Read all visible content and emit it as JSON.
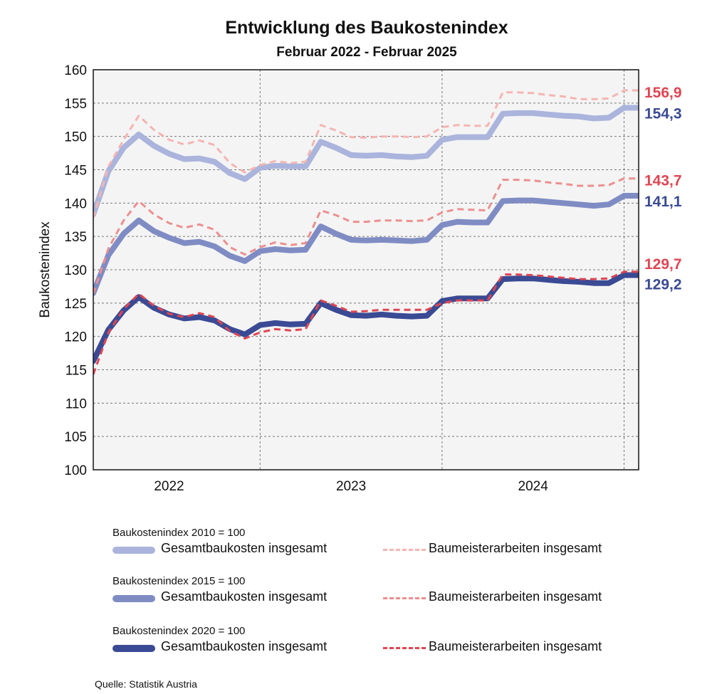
{
  "chart_data": {
    "type": "line",
    "title": "Entwicklung des Baukostenindex",
    "subtitle": "Februar 2022 - Februar 2025",
    "ylabel": "Baukostenindex",
    "xlabel": "",
    "ylim": [
      100,
      160
    ],
    "yticks": [
      100,
      105,
      110,
      115,
      120,
      125,
      130,
      135,
      140,
      145,
      150,
      155,
      160
    ],
    "ytick_labels": [
      "100",
      "105",
      "110",
      "115",
      "120",
      "125",
      "130",
      "135",
      "140",
      "145",
      "150",
      "155",
      "160"
    ],
    "xticks": [
      "2022",
      "2023",
      "2024"
    ],
    "x": [
      "2022-02",
      "2022-03",
      "2022-04",
      "2022-05",
      "2022-06",
      "2022-07",
      "2022-08",
      "2022-09",
      "2022-10",
      "2022-11",
      "2022-12",
      "2023-01",
      "2023-02",
      "2023-03",
      "2023-04",
      "2023-05",
      "2023-06",
      "2023-07",
      "2023-08",
      "2023-09",
      "2023-10",
      "2023-11",
      "2023-12",
      "2024-01",
      "2024-02",
      "2024-03",
      "2024-04",
      "2024-05",
      "2024-06",
      "2024-07",
      "2024-08",
      "2024-09",
      "2024-10",
      "2024-11",
      "2024-12",
      "2025-01",
      "2025-02"
    ],
    "grid": true,
    "series": [
      {
        "group": "Baukostenindex 2010 = 100",
        "name": "Gesamtbaukosten insgesamt",
        "style": "solid-thick",
        "color": "#aab4dc",
        "end_label": "154,3",
        "end_label_color": "#3a4a94",
        "values": [
          138.3,
          144.8,
          148.3,
          150.3,
          148.6,
          147.4,
          146.6,
          146.7,
          146.2,
          144.5,
          143.6,
          145.3,
          145.6,
          145.5,
          145.5,
          149.2,
          148.3,
          147.2,
          147.1,
          147.2,
          147.0,
          146.9,
          147.1,
          149.5,
          149.9,
          149.9,
          149.9,
          153.4,
          153.5,
          153.5,
          153.3,
          153.1,
          153.0,
          152.7,
          152.8,
          154.3,
          154.3
        ]
      },
      {
        "group": "Baukostenindex 2010 = 100",
        "name": "Baumeisterarbeiten insgesamt",
        "style": "dashed",
        "color": "#f5b5b2",
        "end_label": "156,9",
        "end_label_color": "#e04552",
        "values": [
          137.8,
          145.5,
          149.5,
          153.1,
          151.0,
          149.5,
          148.8,
          149.4,
          148.7,
          146.0,
          144.6,
          145.7,
          146.3,
          146.0,
          146.2,
          151.7,
          150.9,
          149.9,
          149.8,
          150.0,
          150.0,
          149.9,
          150.0,
          151.4,
          151.7,
          151.6,
          151.6,
          156.6,
          156.6,
          156.5,
          156.2,
          156.0,
          155.6,
          155.6,
          155.7,
          156.9,
          156.9
        ]
      },
      {
        "group": "Baukostenindex 2015 = 100",
        "name": "Gesamtbaukosten insgesamt",
        "style": "solid-thick",
        "color": "#7f8cc4",
        "end_label": "141,1",
        "end_label_color": "#3a4a94",
        "values": [
          126.5,
          132.2,
          135.4,
          137.4,
          135.8,
          134.8,
          134.0,
          134.2,
          133.5,
          132.1,
          131.3,
          132.8,
          133.1,
          132.9,
          133.0,
          136.5,
          135.4,
          134.5,
          134.4,
          134.5,
          134.4,
          134.3,
          134.5,
          136.7,
          137.2,
          137.1,
          137.1,
          140.3,
          140.4,
          140.4,
          140.2,
          140.0,
          139.8,
          139.6,
          139.8,
          141.1,
          141.1
        ]
      },
      {
        "group": "Baukostenindex 2015 = 100",
        "name": "Baumeisterarbeiten insgesamt",
        "style": "dashed",
        "color": "#ec8f8f",
        "end_label": "143,7",
        "end_label_color": "#e04552",
        "values": [
          126.4,
          133.2,
          137.4,
          140.3,
          138.3,
          137.0,
          136.3,
          136.8,
          136.0,
          133.4,
          132.3,
          133.4,
          134.1,
          133.7,
          134.0,
          138.9,
          138.2,
          137.2,
          137.2,
          137.4,
          137.4,
          137.3,
          137.4,
          138.6,
          139.1,
          139.0,
          138.9,
          143.5,
          143.5,
          143.4,
          143.1,
          142.9,
          142.6,
          142.6,
          142.7,
          143.7,
          143.7
        ]
      },
      {
        "group": "Baukostenindex 2020 = 100",
        "name": "Gesamtbaukosten insgesamt",
        "style": "solid-thick",
        "color": "#3a4a94",
        "end_label": "129,2",
        "end_label_color": "#3a4a94",
        "values": [
          116.3,
          121.0,
          123.9,
          125.9,
          124.3,
          123.3,
          122.7,
          122.9,
          122.4,
          121.1,
          120.3,
          121.7,
          122.0,
          121.8,
          121.9,
          125.0,
          124.0,
          123.2,
          123.1,
          123.3,
          123.1,
          123.0,
          123.1,
          125.3,
          125.7,
          125.7,
          125.7,
          128.6,
          128.7,
          128.7,
          128.5,
          128.3,
          128.2,
          128.0,
          128.0,
          129.2,
          129.2
        ]
      },
      {
        "group": "Baukostenindex 2020 = 100",
        "name": "Baumeisterarbeiten insgesamt",
        "style": "dashed",
        "color": "#e04552",
        "end_label": "129,7",
        "end_label_color": "#e04552",
        "values": [
          114.3,
          120.6,
          124.1,
          126.4,
          124.6,
          123.4,
          122.9,
          123.5,
          122.9,
          120.8,
          119.7,
          120.6,
          121.1,
          120.9,
          121.1,
          125.4,
          124.6,
          123.7,
          123.8,
          124.0,
          124.0,
          124.0,
          124.0,
          125.0,
          125.4,
          125.4,
          125.4,
          129.3,
          129.3,
          129.2,
          129.0,
          128.8,
          128.6,
          128.6,
          128.7,
          129.7,
          129.7
        ]
      }
    ]
  },
  "legend": {
    "groups": [
      {
        "title": "Baukostenindex 2010 = 100",
        "solid_label": "Gesamtbaukosten insgesamt",
        "dashed_label": "Baumeisterarbeiten insgesamt",
        "solid_color": "#aab4dc",
        "dashed_color": "#f5b5b2"
      },
      {
        "title": "Baukostenindex 2015 = 100",
        "solid_label": "Gesamtbaukosten insgesamt",
        "dashed_label": "Baumeisterarbeiten insgesamt",
        "solid_color": "#7f8cc4",
        "dashed_color": "#ec8f8f"
      },
      {
        "title": "Baukostenindex 2020 = 100",
        "solid_label": "Gesamtbaukosten insgesamt",
        "dashed_label": "Baumeisterarbeiten insgesamt",
        "solid_color": "#3a4a94",
        "dashed_color": "#e04552"
      }
    ]
  },
  "source": "Quelle: Statistik Austria",
  "colors": {
    "plot_background": "#f4f4f4",
    "grid": "#777777",
    "red_label": "#e04552",
    "blue_label": "#3a4a94"
  }
}
